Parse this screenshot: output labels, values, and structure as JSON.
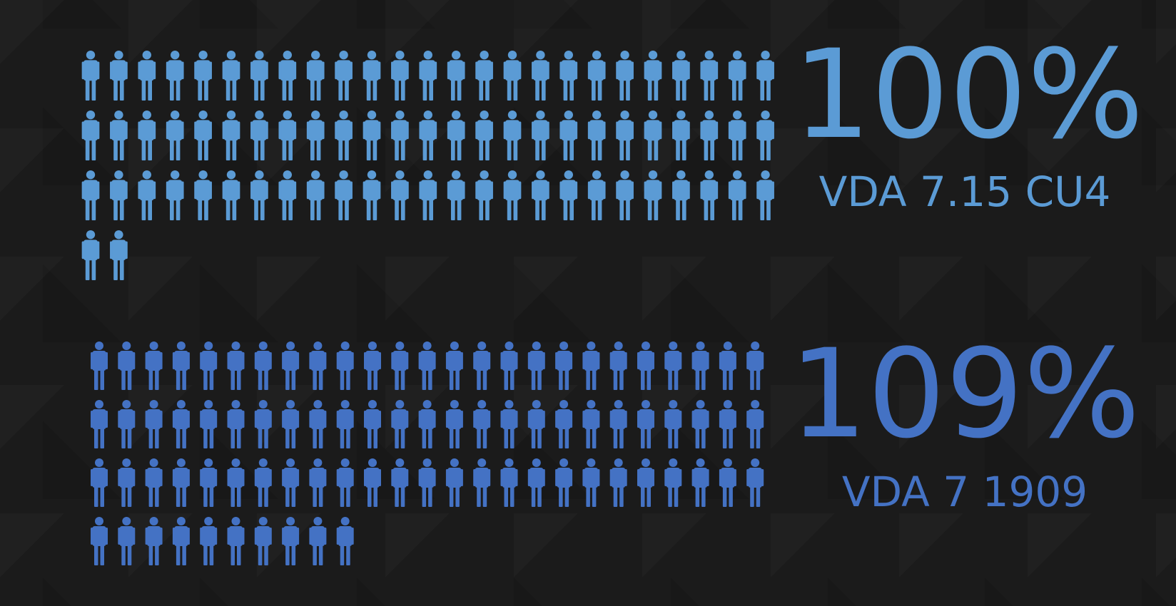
{
  "chart_data": {
    "type": "pictogram",
    "groups": [
      {
        "label": "VDA 7.15 CU4",
        "value_text": "100%",
        "value": 100,
        "icon_count": 77,
        "color": "#5b9bd5"
      },
      {
        "label": "VDA 7 1909",
        "value_text": "109%",
        "value": 109,
        "icon_count": 85,
        "color": "#4472c4"
      }
    ],
    "icon": "person-icon"
  }
}
